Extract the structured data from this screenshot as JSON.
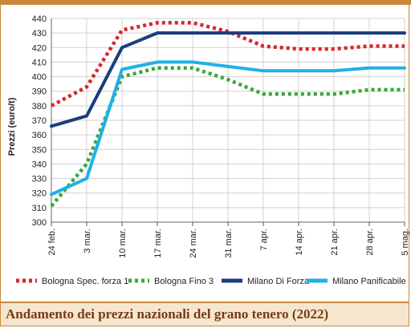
{
  "chart_data": {
    "type": "line",
    "title": "",
    "ylabel": "Prezzi (euro/t)",
    "xlabel": "",
    "ylim": [
      300,
      440
    ],
    "yticks": [
      300,
      310,
      320,
      330,
      340,
      350,
      360,
      370,
      380,
      390,
      400,
      410,
      420,
      430,
      440
    ],
    "categories": [
      "24 feb.",
      "3 mar.",
      "10 mar.",
      "17 mar.",
      "24 mar.",
      "31 mar.",
      "7 apr.",
      "14 apr.",
      "21 apr.",
      "28 apr.",
      "5 mag."
    ],
    "grid": true,
    "legend_position": "bottom",
    "series": [
      {
        "name": "Bologna Spec. forza 1",
        "color": "#d7262b",
        "style": "dotted",
        "values": [
          380,
          393,
          432,
          437,
          437,
          431,
          421,
          419,
          419,
          421,
          421
        ]
      },
      {
        "name": "Bologna Fino 3",
        "color": "#3aa63a",
        "style": "dotted",
        "values": [
          311,
          340,
          400,
          406,
          406,
          398,
          388,
          388,
          388,
          391,
          391
        ]
      },
      {
        "name": "Milano Di Forza",
        "color": "#1a3d7c",
        "style": "solid",
        "values": [
          366,
          373,
          420,
          430,
          430,
          430,
          430,
          430,
          430,
          430,
          430
        ]
      },
      {
        "name": "Milano Panificabile",
        "color": "#1fb1e6",
        "style": "solid",
        "values": [
          319,
          330,
          405,
          410,
          410,
          407,
          404,
          404,
          404,
          406,
          406
        ]
      }
    ]
  },
  "footer": {
    "title": "Andamento dei prezzi nazionali del grano tenero (2022)"
  }
}
